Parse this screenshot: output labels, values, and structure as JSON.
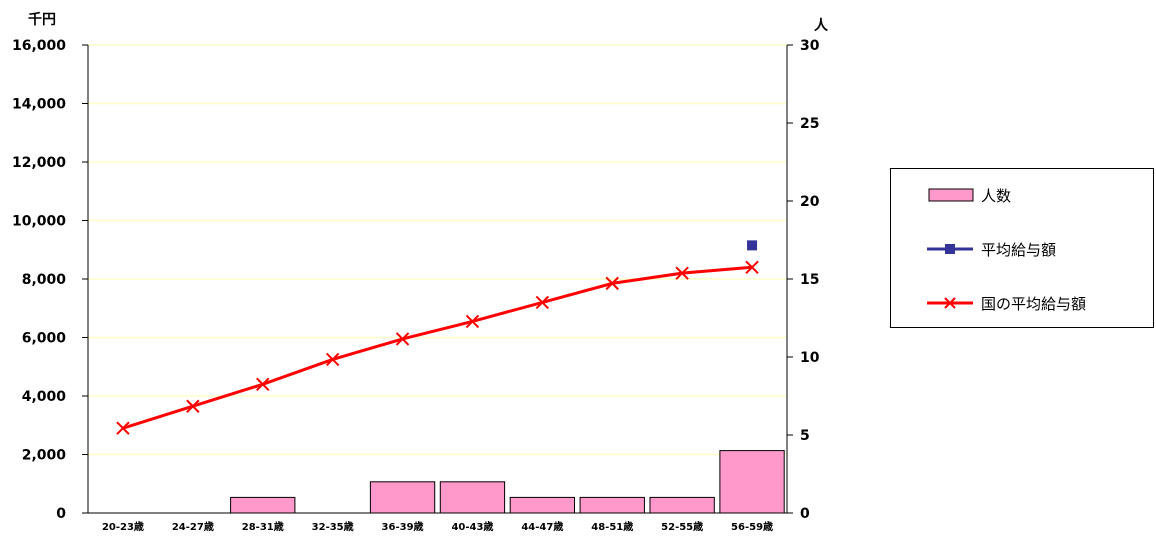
{
  "chart_data": {
    "type": "bar+line",
    "categories": [
      "20-23歳",
      "24-27歳",
      "28-31歳",
      "32-35歳",
      "36-39歳",
      "40-43歳",
      "44-47歳",
      "48-51歳",
      "52-55歳",
      "56-59歳"
    ],
    "left_axis": {
      "unit": "千円",
      "ylim": [
        0,
        16000
      ],
      "ticks": [
        "0",
        "2,000",
        "4,000",
        "6,000",
        "8,000",
        "10,000",
        "12,000",
        "14,000",
        "16,000"
      ]
    },
    "right_axis": {
      "unit": "人",
      "ylim": [
        0,
        30
      ],
      "ticks": [
        "0",
        "5",
        "10",
        "15",
        "20",
        "25",
        "30"
      ]
    },
    "grid": true,
    "legend_placement": "right",
    "series": [
      {
        "name": "人数",
        "kind": "bar",
        "axis": "right",
        "color": "#ff99cc",
        "values": [
          0,
          0,
          1,
          0,
          2,
          2,
          1,
          1,
          1,
          4
        ]
      },
      {
        "name": "平均給与額",
        "kind": "line",
        "axis": "left",
        "color": "#333399",
        "values": [
          null,
          null,
          null,
          null,
          null,
          null,
          null,
          null,
          null,
          9150
        ]
      },
      {
        "name": "国の平均給与額",
        "kind": "line",
        "axis": "left",
        "color": "#ff0000",
        "values": [
          2900,
          3650,
          4400,
          5250,
          5950,
          6550,
          7200,
          7850,
          8200,
          8400
        ]
      }
    ]
  }
}
